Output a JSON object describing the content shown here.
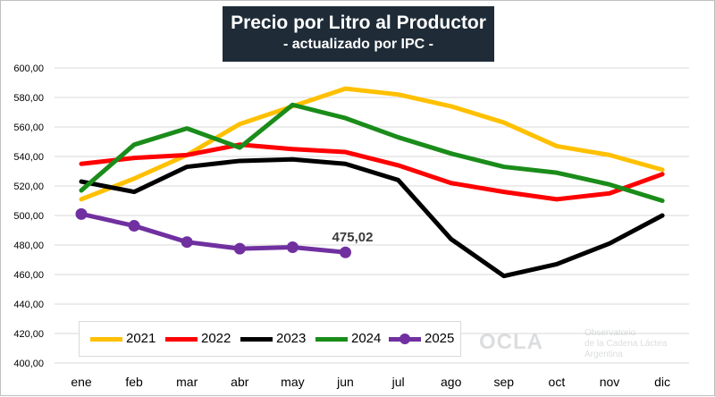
{
  "title": {
    "line1": "Precio por Litro al Productor",
    "line2": "- actualizado por IPC -"
  },
  "chart_data": {
    "type": "line",
    "categories": [
      "ene",
      "feb",
      "mar",
      "abr",
      "may",
      "jun",
      "jul",
      "ago",
      "sep",
      "oct",
      "nov",
      "dic"
    ],
    "ylim": [
      400,
      600
    ],
    "yticks": [
      "400,00",
      "420,00",
      "440,00",
      "460,00",
      "480,00",
      "500,00",
      "520,00",
      "540,00",
      "560,00",
      "580,00",
      "600,00"
    ],
    "grid": true,
    "legend_position": "bottom-left",
    "series": [
      {
        "name": "2021",
        "color": "#ffc000",
        "markers": false,
        "values": [
          511,
          525,
          541,
          562,
          574,
          586,
          582,
          574,
          563,
          547,
          541,
          531
        ]
      },
      {
        "name": "2022",
        "color": "#ff0000",
        "markers": false,
        "values": [
          535,
          539,
          541,
          548,
          545,
          543,
          534,
          522,
          516,
          511,
          515,
          528
        ]
      },
      {
        "name": "2023",
        "color": "#000000",
        "markers": false,
        "values": [
          523,
          516,
          533,
          537,
          538,
          535,
          524,
          484,
          459,
          467,
          481,
          500
        ]
      },
      {
        "name": "2024",
        "color": "#1a8c1a",
        "markers": false,
        "values": [
          517,
          548,
          559,
          546,
          575,
          566,
          553,
          542,
          533,
          529,
          521,
          510
        ]
      },
      {
        "name": "2025",
        "color": "#7030a0",
        "markers": true,
        "values": [
          501,
          493,
          482,
          477.5,
          478.5,
          475.02,
          null,
          null,
          null,
          null,
          null,
          null
        ]
      }
    ],
    "annotations": [
      {
        "text": "475,02",
        "series": "2025",
        "category": "jun"
      }
    ]
  },
  "watermark": {
    "logo": "OCLA",
    "line1": "Observatorio",
    "line2": "de la Cadena Láctea",
    "line3": "Argentina"
  }
}
